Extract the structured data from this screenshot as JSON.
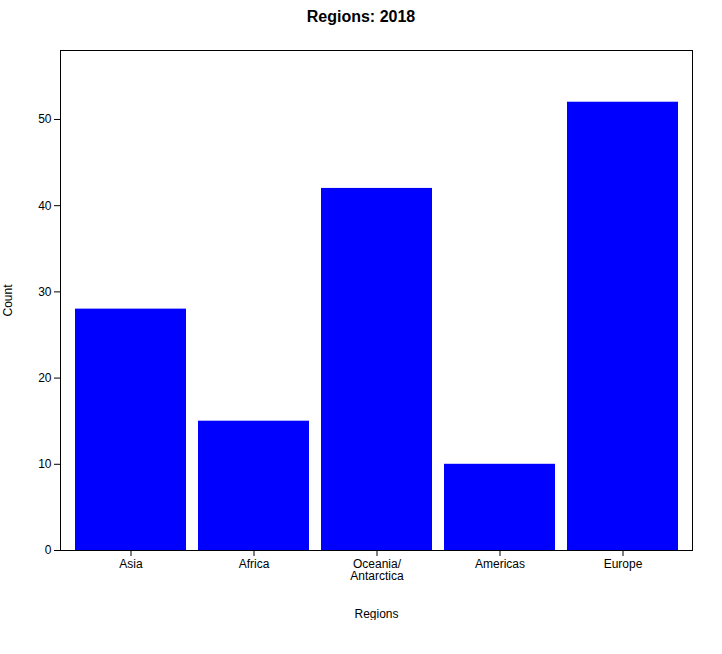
{
  "chart_data": {
    "type": "bar",
    "title": "Regions: 2018",
    "xlabel": "Regions",
    "ylabel": "Count",
    "categories": [
      "Asia",
      "Africa",
      "Oceania/\nAntarctica",
      "Americas",
      "Europe"
    ],
    "values": [
      28,
      15,
      42,
      10,
      52
    ],
    "color": "#0000ff",
    "ylim": [
      0,
      58
    ],
    "yticks": [
      0,
      10,
      20,
      30,
      40,
      50
    ],
    "grid": false
  }
}
